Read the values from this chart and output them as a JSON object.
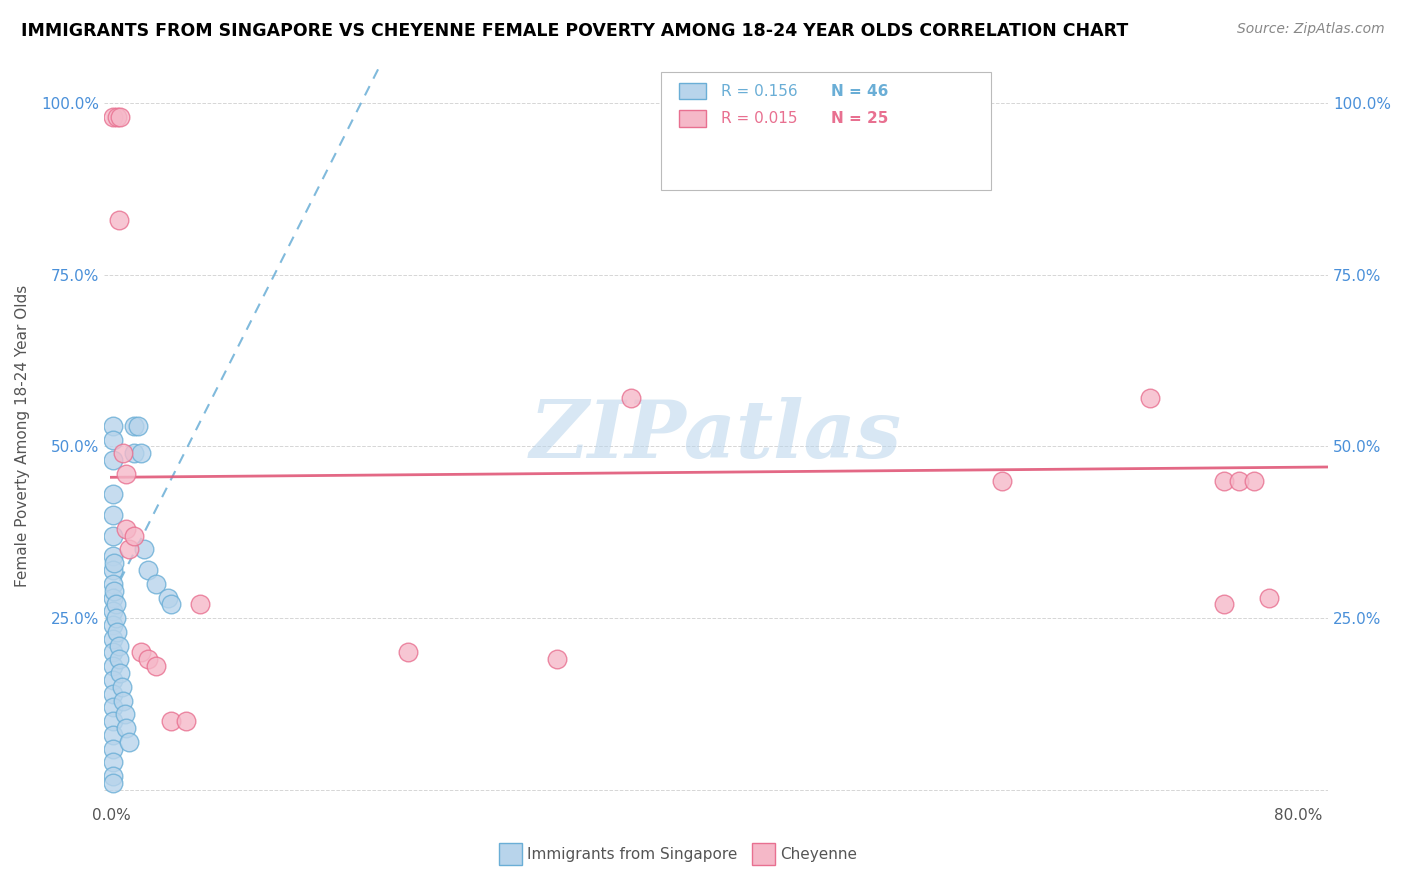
{
  "title": "IMMIGRANTS FROM SINGAPORE VS CHEYENNE FEMALE POVERTY AMONG 18-24 YEAR OLDS CORRELATION CHART",
  "source": "Source: ZipAtlas.com",
  "ylabel": "Female Poverty Among 18-24 Year Olds",
  "xlim": [
    -0.005,
    0.82
  ],
  "ylim": [
    -0.02,
    1.05
  ],
  "xticks": [
    0.0,
    0.1,
    0.2,
    0.3,
    0.4,
    0.5,
    0.6,
    0.7,
    0.8
  ],
  "xticklabels": [
    "0.0%",
    "",
    "",
    "",
    "",
    "",
    "",
    "",
    "80.0%"
  ],
  "yticks": [
    0.0,
    0.25,
    0.5,
    0.75,
    1.0
  ],
  "legend_label1": "Immigrants from Singapore",
  "legend_label2": "Cheyenne",
  "R1": 0.156,
  "N1": 46,
  "R2": 0.015,
  "N2": 25,
  "color_blue_fill": "#b8d4eb",
  "color_blue_edge": "#6aaed6",
  "color_pink_fill": "#f5b8c8",
  "color_pink_edge": "#e87090",
  "color_trendline_blue": "#6aaed6",
  "color_trendline_pink": "#e05878",
  "color_ylabel": "#555555",
  "color_ytick": "#4a90d9",
  "color_xtick": "#555555",
  "watermark_text": "ZIPatlas",
  "blue_points": [
    [
      0.001,
      0.53
    ],
    [
      0.001,
      0.51
    ],
    [
      0.001,
      0.48
    ],
    [
      0.001,
      0.43
    ],
    [
      0.001,
      0.4
    ],
    [
      0.001,
      0.37
    ],
    [
      0.001,
      0.34
    ],
    [
      0.001,
      0.32
    ],
    [
      0.001,
      0.3
    ],
    [
      0.001,
      0.28
    ],
    [
      0.001,
      0.26
    ],
    [
      0.001,
      0.24
    ],
    [
      0.001,
      0.22
    ],
    [
      0.001,
      0.2
    ],
    [
      0.001,
      0.18
    ],
    [
      0.001,
      0.16
    ],
    [
      0.001,
      0.14
    ],
    [
      0.001,
      0.12
    ],
    [
      0.001,
      0.1
    ],
    [
      0.001,
      0.08
    ],
    [
      0.001,
      0.06
    ],
    [
      0.001,
      0.04
    ],
    [
      0.001,
      0.02
    ],
    [
      0.001,
      0.01
    ],
    [
      0.002,
      0.33
    ],
    [
      0.002,
      0.29
    ],
    [
      0.003,
      0.27
    ],
    [
      0.003,
      0.25
    ],
    [
      0.004,
      0.23
    ],
    [
      0.005,
      0.21
    ],
    [
      0.005,
      0.19
    ],
    [
      0.006,
      0.17
    ],
    [
      0.007,
      0.15
    ],
    [
      0.008,
      0.13
    ],
    [
      0.009,
      0.11
    ],
    [
      0.01,
      0.09
    ],
    [
      0.012,
      0.07
    ],
    [
      0.015,
      0.53
    ],
    [
      0.015,
      0.49
    ],
    [
      0.018,
      0.53
    ],
    [
      0.02,
      0.49
    ],
    [
      0.022,
      0.35
    ],
    [
      0.025,
      0.32
    ],
    [
      0.03,
      0.3
    ],
    [
      0.038,
      0.28
    ],
    [
      0.04,
      0.27
    ]
  ],
  "pink_points": [
    [
      0.001,
      0.98
    ],
    [
      0.004,
      0.98
    ],
    [
      0.005,
      0.83
    ],
    [
      0.006,
      0.98
    ],
    [
      0.008,
      0.49
    ],
    [
      0.01,
      0.46
    ],
    [
      0.01,
      0.38
    ],
    [
      0.012,
      0.35
    ],
    [
      0.015,
      0.37
    ],
    [
      0.02,
      0.2
    ],
    [
      0.025,
      0.19
    ],
    [
      0.03,
      0.18
    ],
    [
      0.04,
      0.1
    ],
    [
      0.05,
      0.1
    ],
    [
      0.06,
      0.27
    ],
    [
      0.2,
      0.2
    ],
    [
      0.3,
      0.19
    ],
    [
      0.35,
      0.57
    ],
    [
      0.6,
      0.45
    ],
    [
      0.7,
      0.57
    ],
    [
      0.75,
      0.27
    ],
    [
      0.75,
      0.45
    ],
    [
      0.76,
      0.45
    ],
    [
      0.77,
      0.45
    ],
    [
      0.78,
      0.28
    ]
  ],
  "blue_trend_x": [
    0.0,
    0.18
  ],
  "blue_trend_y": [
    0.28,
    1.05
  ],
  "pink_trend_x": [
    0.0,
    0.82
  ],
  "pink_trend_y": [
    0.455,
    0.47
  ]
}
